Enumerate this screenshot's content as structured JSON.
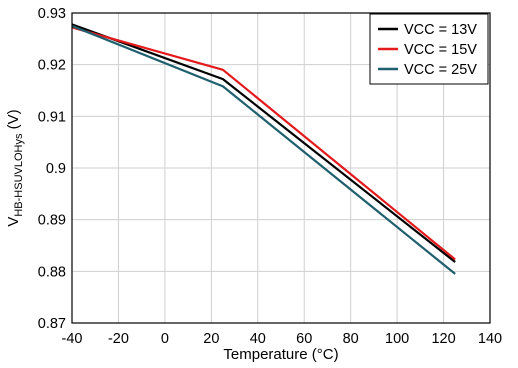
{
  "chart_data": {
    "type": "line",
    "x": [
      -40,
      25,
      125
    ],
    "xlabel": "Temperature (°C)",
    "ylabel_main": "V",
    "ylabel_sub": "HB-HSUVLOHys",
    "ylabel_unit": " (V)",
    "xlim": [
      -40,
      140
    ],
    "ylim": [
      0.87,
      0.93
    ],
    "xticks": [
      -40,
      -20,
      0,
      20,
      40,
      60,
      80,
      100,
      120,
      140
    ],
    "yticks": [
      0.87,
      0.88,
      0.89,
      0.9,
      0.91,
      0.92,
      0.93
    ],
    "xtick_labels": [
      "-40",
      "-20",
      "0",
      "20",
      "40",
      "60",
      "80",
      "100",
      "120",
      "140"
    ],
    "ytick_labels": [
      "0.87",
      "0.88",
      "0.89",
      "0.9",
      "0.91",
      "0.92",
      "0.93"
    ],
    "grid": true,
    "legend_position": "top-right",
    "series": [
      {
        "name": "VCC = 13V",
        "color": "#000000",
        "values": [
          0.9278,
          0.9172,
          0.8818
        ]
      },
      {
        "name": "VCC = 15V",
        "color": "#e31a1c",
        "values": [
          0.9272,
          0.919,
          0.8823
        ]
      },
      {
        "name": "VCC = 25V",
        "color": "#1f5f6e",
        "values": [
          0.9275,
          0.9158,
          0.8795
        ]
      }
    ]
  }
}
